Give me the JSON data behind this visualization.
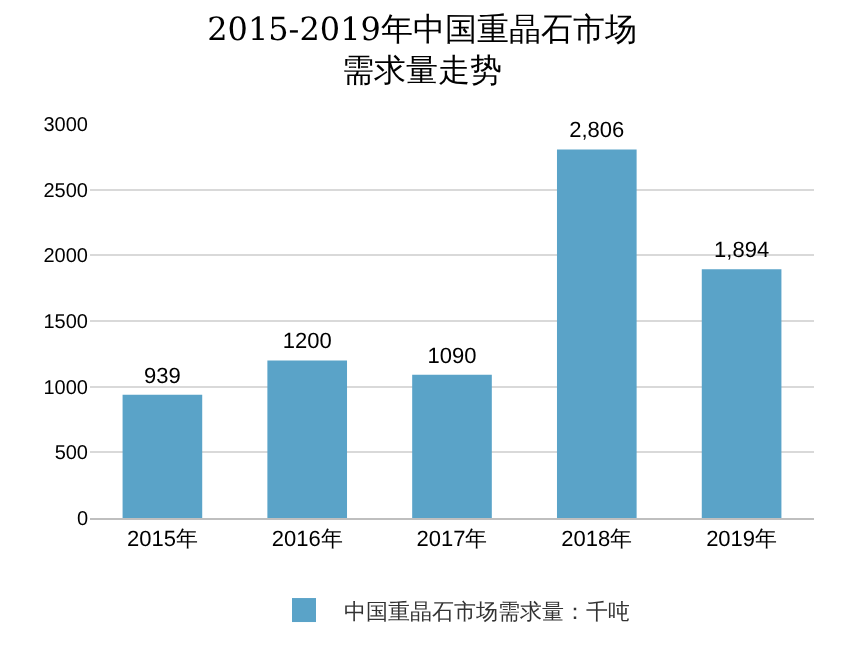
{
  "chart_data": {
    "type": "bar",
    "title": "2015-2019年中国重晶石市场需求量走势",
    "categories": [
      "2015年",
      "2016年",
      "2017年",
      "2018年",
      "2019年"
    ],
    "series": [
      {
        "name": "中国重晶石市场需求量：千吨",
        "color": "#5aa3c8",
        "values": [
          939,
          1200,
          1090,
          2806,
          1894
        ],
        "value_labels": [
          "939",
          "1200",
          "1090",
          "2,806",
          "1,894"
        ]
      }
    ],
    "ylim": [
      0,
      3000
    ],
    "yticks": [
      0,
      500,
      1000,
      1500,
      2000,
      2500,
      3000
    ],
    "grid": "y",
    "legend": "bottom"
  }
}
